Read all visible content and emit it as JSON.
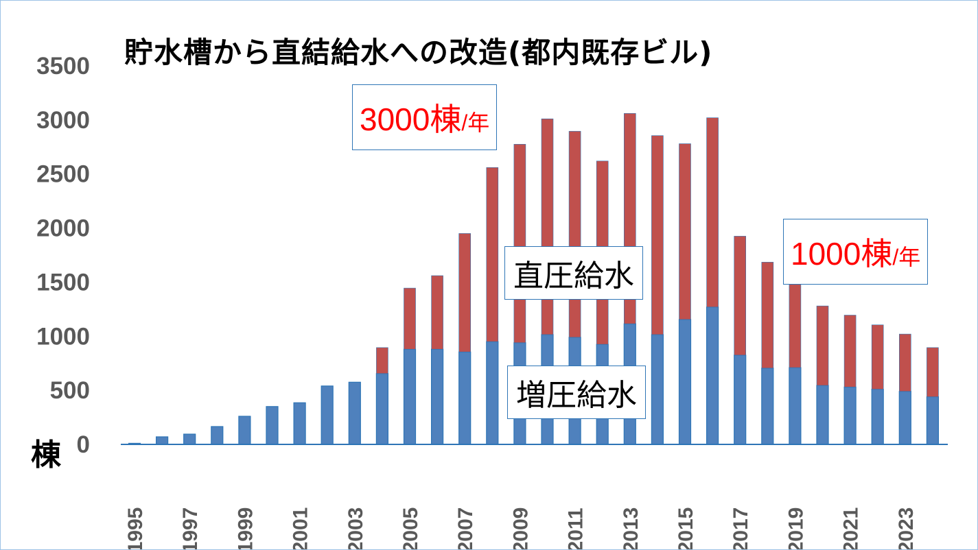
{
  "chart_data": {
    "type": "bar",
    "stacked": true,
    "title": "貯水槽から直結給水への改造(都内既存ビル)",
    "ylabel": "棟",
    "ylim": [
      0,
      3500
    ],
    "yticks": [
      0,
      500,
      1000,
      1500,
      2000,
      2500,
      3000,
      3500
    ],
    "categories": [
      1995,
      1996,
      1997,
      1998,
      1999,
      2000,
      2001,
      2002,
      2003,
      2004,
      2005,
      2006,
      2007,
      2008,
      2009,
      2010,
      2011,
      2012,
      2013,
      2014,
      2015,
      2016,
      2017,
      2018,
      2019,
      2020,
      2021,
      2022,
      2023,
      2024
    ],
    "xtick_labels": [
      "1995",
      "1997",
      "1999",
      "2001",
      "2003",
      "2005",
      "2007",
      "2009",
      "2011",
      "2013",
      "2015",
      "2017",
      "2019",
      "2021",
      "2023"
    ],
    "series": [
      {
        "name": "増圧給水",
        "color": "#4f81bd",
        "values": [
          10,
          70,
          95,
          165,
          260,
          350,
          385,
          540,
          575,
          655,
          880,
          880,
          855,
          950,
          940,
          1015,
          990,
          925,
          1115,
          1015,
          1155,
          1270,
          825,
          705,
          710,
          545,
          530,
          510,
          490,
          440
        ]
      },
      {
        "name": "直圧給水",
        "color": "#c0504d",
        "values": [
          0,
          0,
          0,
          0,
          0,
          0,
          0,
          0,
          0,
          240,
          565,
          680,
          1095,
          1610,
          1835,
          1995,
          1905,
          1695,
          1945,
          1840,
          1625,
          1750,
          1100,
          980,
          815,
          735,
          665,
          595,
          530,
          455
        ]
      }
    ],
    "annotations": [
      {
        "num": "3000棟",
        "suffix": "/年"
      },
      {
        "num": "1000棟",
        "suffix": "/年"
      }
    ]
  }
}
